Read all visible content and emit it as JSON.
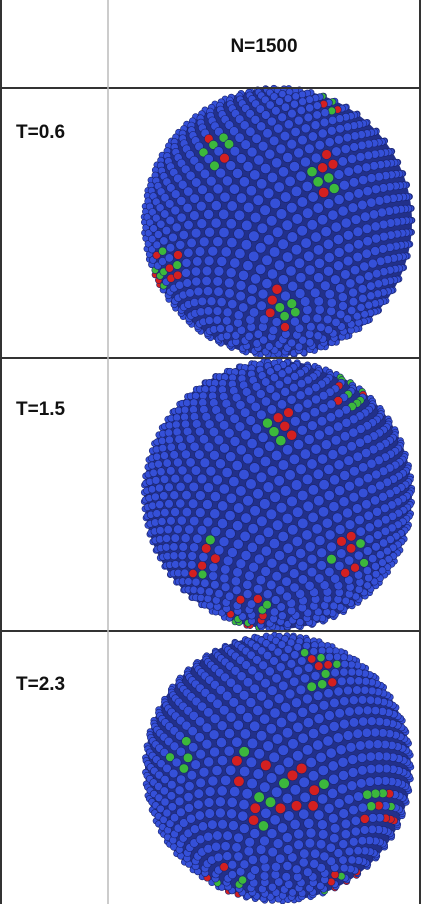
{
  "table": {
    "column_header": "N=1500",
    "rows": [
      {
        "label": "T=0.6"
      },
      {
        "label": "T=1.5"
      },
      {
        "label": "T=2.3"
      }
    ]
  }
}
